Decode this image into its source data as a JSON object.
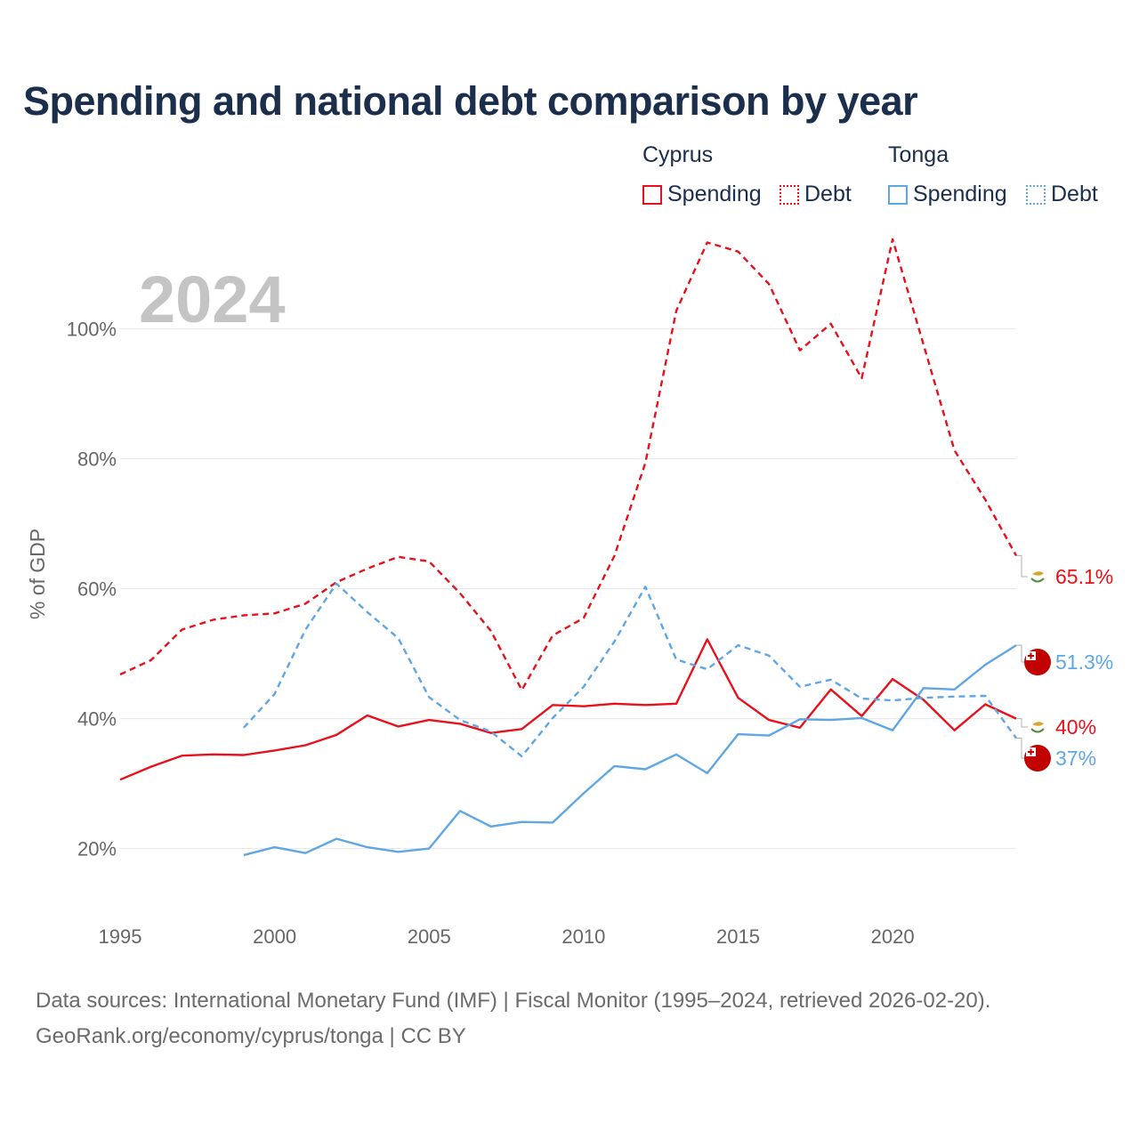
{
  "title": "Spending and national debt comparison by year",
  "legend": {
    "groups": [
      {
        "name": "Cyprus",
        "color": "#e8101a",
        "entries": [
          {
            "label": "Spending",
            "style": "solid"
          },
          {
            "label": "Debt",
            "style": "dotted"
          }
        ]
      },
      {
        "name": "Tonga",
        "color": "#5ea6e6",
        "entries": [
          {
            "label": "Spending",
            "style": "solid"
          },
          {
            "label": "Debt",
            "style": "dotted"
          }
        ]
      }
    ]
  },
  "year_overlay": "2024",
  "chart_data": {
    "type": "line",
    "title": "Spending and national debt comparison by year",
    "xlabel": "",
    "ylabel": "% of GDP",
    "xlim": [
      1995,
      2024
    ],
    "ylim": [
      12,
      112
    ],
    "x_ticks": [
      1995,
      2000,
      2005,
      2010,
      2015,
      2020
    ],
    "x_tick_labels": [
      "1995",
      "2000",
      "2005",
      "2010",
      "2015",
      "2020"
    ],
    "y_ticks": [
      20,
      40,
      60,
      80,
      100
    ],
    "y_tick_labels": [
      "20%",
      "40%",
      "60%",
      "80%",
      "100%"
    ],
    "grid": true,
    "series": [
      {
        "name": "Cyprus Spending",
        "country": "Cyprus",
        "metric": "Spending",
        "color": "#e8101a",
        "dash": "solid",
        "x": [
          1995,
          1996,
          1997,
          1998,
          1999,
          2000,
          2001,
          2002,
          2003,
          2004,
          2005,
          2006,
          2007,
          2008,
          2009,
          2010,
          2011,
          2012,
          2013,
          2014,
          2015,
          2016,
          2017,
          2018,
          2019,
          2020,
          2021,
          2022,
          2023,
          2024
        ],
        "values": [
          30.6,
          32.6,
          34.3,
          34.5,
          34.4,
          35.1,
          35.9,
          37.5,
          40.5,
          38.8,
          39.8,
          39.2,
          37.8,
          38.4,
          42.1,
          41.9,
          42.3,
          42.1,
          42.3,
          52.2,
          43.2,
          39.8,
          38.6,
          44.5,
          40.4,
          46.1,
          42.9,
          38.2,
          42.2,
          40.0
        ],
        "end_label": "40%"
      },
      {
        "name": "Cyprus Debt",
        "country": "Cyprus",
        "metric": "Debt",
        "color": "#e8101a",
        "dash": "dashed",
        "x": [
          1995,
          1996,
          1997,
          1998,
          1999,
          2000,
          2001,
          2002,
          2003,
          2004,
          2005,
          2006,
          2007,
          2008,
          2009,
          2010,
          2011,
          2012,
          2013,
          2014,
          2015,
          2016,
          2017,
          2018,
          2019,
          2020,
          2021,
          2022,
          2023,
          2024
        ],
        "values": [
          46.8,
          49.0,
          53.7,
          55.2,
          55.9,
          56.2,
          57.7,
          61.0,
          63.1,
          64.9,
          64.2,
          59.3,
          53.5,
          44.4,
          52.8,
          55.5,
          65.1,
          79.4,
          102.8,
          113.3,
          111.9,
          106.9,
          96.7,
          100.8,
          92.4,
          113.8,
          97.6,
          81.3,
          73.7,
          65.1
        ],
        "end_label": "65.1%"
      },
      {
        "name": "Tonga Spending",
        "country": "Tonga",
        "metric": "Spending",
        "color": "#5ea6e6",
        "dash": "solid",
        "x": [
          1999,
          2000,
          2001,
          2002,
          2003,
          2004,
          2005,
          2006,
          2007,
          2008,
          2009,
          2010,
          2011,
          2012,
          2013,
          2014,
          2015,
          2016,
          2017,
          2018,
          2019,
          2020,
          2021,
          2022,
          2023,
          2024
        ],
        "values": [
          19.0,
          20.2,
          19.3,
          21.5,
          20.2,
          19.5,
          20.0,
          25.8,
          23.4,
          24.1,
          24.0,
          28.5,
          32.7,
          32.2,
          34.5,
          31.6,
          37.6,
          37.4,
          39.9,
          39.8,
          40.1,
          38.2,
          44.7,
          44.5,
          48.3,
          51.3
        ],
        "end_label": "51.3%"
      },
      {
        "name": "Tonga Debt",
        "country": "Tonga",
        "metric": "Debt",
        "color": "#5ea6e6",
        "dash": "dashed",
        "x": [
          1999,
          2000,
          2001,
          2002,
          2003,
          2004,
          2005,
          2006,
          2007,
          2008,
          2009,
          2010,
          2011,
          2012,
          2013,
          2014,
          2015,
          2016,
          2017,
          2018,
          2019,
          2020,
          2021,
          2022,
          2023,
          2024
        ],
        "values": [
          38.6,
          43.8,
          53.7,
          60.8,
          56.4,
          52.4,
          43.3,
          39.8,
          38.0,
          34.2,
          40.1,
          44.9,
          51.9,
          60.3,
          49.1,
          47.6,
          51.3,
          49.7,
          44.9,
          46.0,
          43.1,
          42.8,
          43.2,
          43.4,
          43.5,
          37.0
        ],
        "end_label": "37%"
      }
    ]
  },
  "footer": {
    "line1": "Data sources: International Monetary Fund (IMF) | Fiscal Monitor (1995–2024, retrieved 2026-02-20).",
    "line2": "GeoRank.org/economy/cyprus/tonga | CC BY"
  }
}
